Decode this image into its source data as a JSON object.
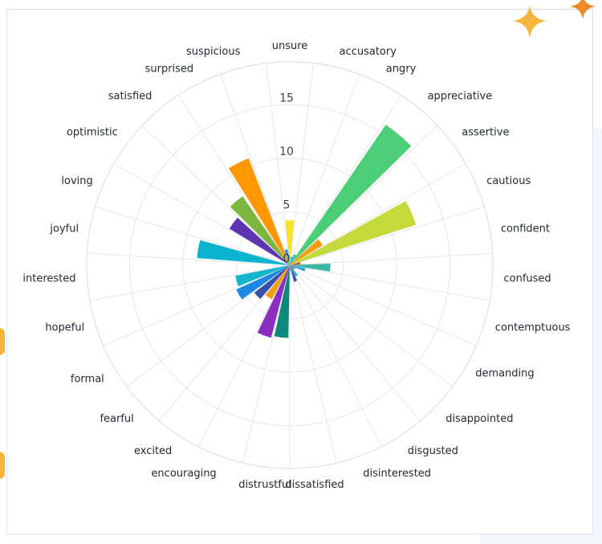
{
  "chart_data": {
    "type": "polar-bar",
    "categories": [
      "unsure",
      "accusatory",
      "angry",
      "appreciative",
      "assertive",
      "cautious",
      "confident",
      "confused",
      "contemptuous",
      "demanding",
      "disappointed",
      "disgusted",
      "disinterested",
      "dissatisfied",
      "distrustful",
      "encouraging",
      "excited",
      "fearful",
      "formal",
      "hopeful",
      "interested",
      "joyful",
      "loving",
      "optimistic",
      "satisfied",
      "surprised",
      "suspicious"
    ],
    "values": [
      4.2,
      0.8,
      1.1,
      15.9,
      3.6,
      12.4,
      1.0,
      3.8,
      1.5,
      0.6,
      0.5,
      1.2,
      1.6,
      0.5,
      6.8,
      7.0,
      3.6,
      4.2,
      5.5,
      5.2,
      0,
      8.7,
      0,
      6.6,
      7.8,
      10.7,
      1.5
    ],
    "colors": [
      "#f7e22a",
      "#1fa8d9",
      "#3bb6a3",
      "#4ccd78",
      "#f59e0b",
      "#c6d93a",
      "#e03a26",
      "#3bb6a3",
      "#1fa8d9",
      "#7b6fd6",
      "#e03a26",
      "#1fa8d9",
      "#3a4fa8",
      "#f59e0b",
      "#0e8a7c",
      "#8a2fbf",
      "#f59e0b",
      "#3a4fa8",
      "#1e88e5",
      "#12b5cb",
      "#38a8dc",
      "#0bb4ce",
      "#4caf50",
      "#5e35b1",
      "#7cb63f",
      "#ff9800",
      "#2196f3"
    ],
    "radial_ticks": [
      "0",
      "5",
      "10",
      "15"
    ],
    "rmax": 19
  }
}
